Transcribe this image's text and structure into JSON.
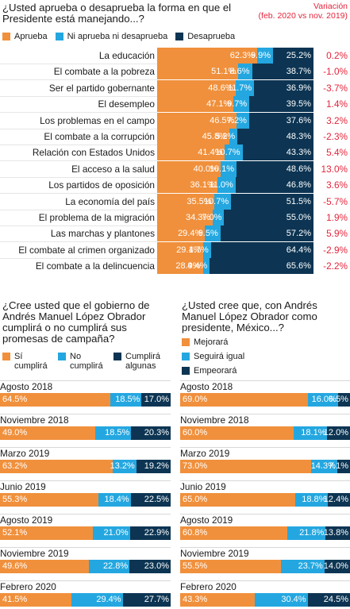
{
  "top": {
    "question": "¿Usted aprueba o desaprueba la forma en que el Presidente está manejando...?",
    "variacion_title": "Variación",
    "variacion_sub": "(feb. 2020 vs nov. 2019)",
    "legend": [
      {
        "label": "Aprueba",
        "color": "#f0903c"
      },
      {
        "label": "Ni aprueba ni desaprueba",
        "color": "#24a7e0"
      },
      {
        "label": "Desaprueba",
        "color": "#0d3553"
      }
    ]
  },
  "bottom_left": {
    "question": "¿Cree usted que el gobierno de Andrés Manuel López Obrador cumplirá o no cumplirá sus promesas de campaña?",
    "legend": [
      {
        "label": "Sí cumplirá",
        "color": "#f0903c"
      },
      {
        "label": "No cumplirá",
        "color": "#24a7e0"
      },
      {
        "label": "Cumplirá algunas",
        "color": "#0d3553"
      }
    ]
  },
  "bottom_right": {
    "question": "¿Usted cree que, con Andrés Manuel López Obrador como presidente, México...?",
    "legend": [
      {
        "label": "Mejorará",
        "color": "#f0903c"
      },
      {
        "label": "Seguirá igual",
        "color": "#24a7e0"
      },
      {
        "label": "Empeorará",
        "color": "#0d3553"
      }
    ]
  },
  "chart_data": [
    {
      "type": "bar",
      "stacked": true,
      "orientation": "horizontal",
      "title": "¿Usted aprueba o desaprueba la forma en que el Presidente está manejando...?",
      "categories": [
        "La educación",
        "El combate a la pobreza",
        "Ser el partido gobernante",
        "El desempleo",
        "Los problemas en el campo",
        "El combate a la corrupción",
        "Relación con Estados Unidos",
        "El acceso a la salud",
        "Los partidos de oposición",
        "La economía del país",
        "El problema de la migración",
        "Las marchas y plantones",
        "El combate al crimen organizado",
        "El combate a la delincuencia"
      ],
      "series": [
        {
          "name": "Aprueba",
          "values": [
            62.3,
            51.1,
            48.6,
            47.1,
            46.5,
            45.8,
            41.4,
            40.0,
            36.1,
            35.5,
            34.3,
            29.4,
            29.1,
            28.9
          ],
          "labels": [
            "62.3%",
            "51.1%",
            "48.6%",
            "47.1%",
            "46.5%",
            "45.8%",
            "41.4%",
            "40.0%",
            "36.1%",
            "35.5%",
            "34.3%",
            "29.4%",
            "29.1%",
            "28.9%"
          ]
        },
        {
          "name": "Ni aprueba ni desaprueba",
          "values": [
            9.9,
            8.6,
            11.7,
            9.7,
            7.2,
            5.2,
            10.7,
            10.1,
            11.0,
            10.7,
            7.0,
            9.5,
            4.7,
            4.4
          ],
          "labels": [
            "9.9%",
            "8.6%",
            "11.7%",
            "9.7%",
            "7.2%",
            "5.2%",
            "10.7%",
            "10.1%",
            "11.0%",
            "10.7%",
            "7.0%",
            "9.5%",
            "4.7%",
            "4.4%"
          ]
        },
        {
          "name": "Desaprueba",
          "values": [
            25.2,
            38.7,
            36.9,
            39.5,
            37.6,
            48.3,
            43.3,
            48.6,
            46.8,
            51.5,
            55.0,
            57.2,
            64.4,
            65.6
          ],
          "labels": [
            "25.2%",
            "38.7%",
            "36.9%",
            "39.5%",
            "37.6%",
            "48.3%",
            "43.3%",
            "48.6%",
            "46.8%",
            "51.5%",
            "55.0%",
            "57.2%",
            "64.4%",
            "65.6%"
          ]
        }
      ],
      "variacion": [
        "0.2%",
        "-1.0%",
        "-3.7%",
        "1.4%",
        "3.2%",
        "-2.3%",
        "5.4%",
        "13.0%",
        "3.6%",
        "-5.7%",
        "1.9%",
        "5.9%",
        "-2.9%",
        "-2.2%"
      ]
    },
    {
      "type": "bar",
      "stacked": true,
      "orientation": "horizontal",
      "title": "¿Cree usted que el gobierno de Andrés Manuel López Obrador cumplirá o no cumplirá sus promesas de campaña?",
      "categories": [
        "Agosto 2018",
        "Noviembre 2018",
        "Marzo 2019",
        "Junio 2019",
        "Agosto 2019",
        "Noviembre 2019",
        "Febrero 2020"
      ],
      "series": [
        {
          "name": "Sí cumplirá",
          "values": [
            64.5,
            49.0,
            63.2,
            55.3,
            52.1,
            49.6,
            41.5
          ],
          "labels": [
            "64.5%",
            "49.0%",
            "63.2%",
            "55.3%",
            "52.1%",
            "49.6%",
            "41.5%"
          ]
        },
        {
          "name": "No cumplirá",
          "values": [
            18.5,
            18.5,
            13.2,
            18.4,
            21.0,
            22.8,
            29.4
          ],
          "labels": [
            "18.5%",
            "18.5%",
            "13.2%",
            "18.4%",
            "21.0%",
            "22.8%",
            "29.4%"
          ]
        },
        {
          "name": "Cumplirá algunas",
          "values": [
            17.0,
            20.3,
            19.2,
            22.5,
            22.9,
            23.0,
            27.7
          ],
          "labels": [
            "17.0%",
            "20.3%",
            "19.2%",
            "22.5%",
            "22.9%",
            "23.0%",
            "27.7%"
          ]
        }
      ]
    },
    {
      "type": "bar",
      "stacked": true,
      "orientation": "horizontal",
      "title": "¿Usted cree que, con Andrés Manuel López Obrador como presidente, México...?",
      "categories": [
        "Agosto 2018",
        "Noviembre 2018",
        "Marzo 2019",
        "Junio 2019",
        "Agosto 2019",
        "Noviembre 2019",
        "Febrero 2020"
      ],
      "series": [
        {
          "name": "Mejorará",
          "values": [
            69.0,
            60.0,
            73.0,
            65.0,
            60.8,
            55.5,
            43.3
          ],
          "labels": [
            "69.0%",
            "60.0%",
            "73.0%",
            "65.0%",
            "60.8%",
            "55.5%",
            "43.3%"
          ]
        },
        {
          "name": "Seguirá igual",
          "values": [
            16.0,
            18.1,
            14.3,
            18.8,
            21.8,
            23.7,
            30.4
          ],
          "labels": [
            "16.0%",
            "18.1%",
            "14.3%",
            "18.8%",
            "21.8%",
            "23.7%",
            "30.4%"
          ]
        },
        {
          "name": "Empeorará",
          "values": [
            6.5,
            12.0,
            7.1,
            12.4,
            13.8,
            14.0,
            24.5
          ],
          "labels": [
            "6.5%",
            "12.0%",
            "7.1%",
            "12.4%",
            "13.8%",
            "14.0%",
            "24.5%"
          ]
        }
      ]
    }
  ]
}
